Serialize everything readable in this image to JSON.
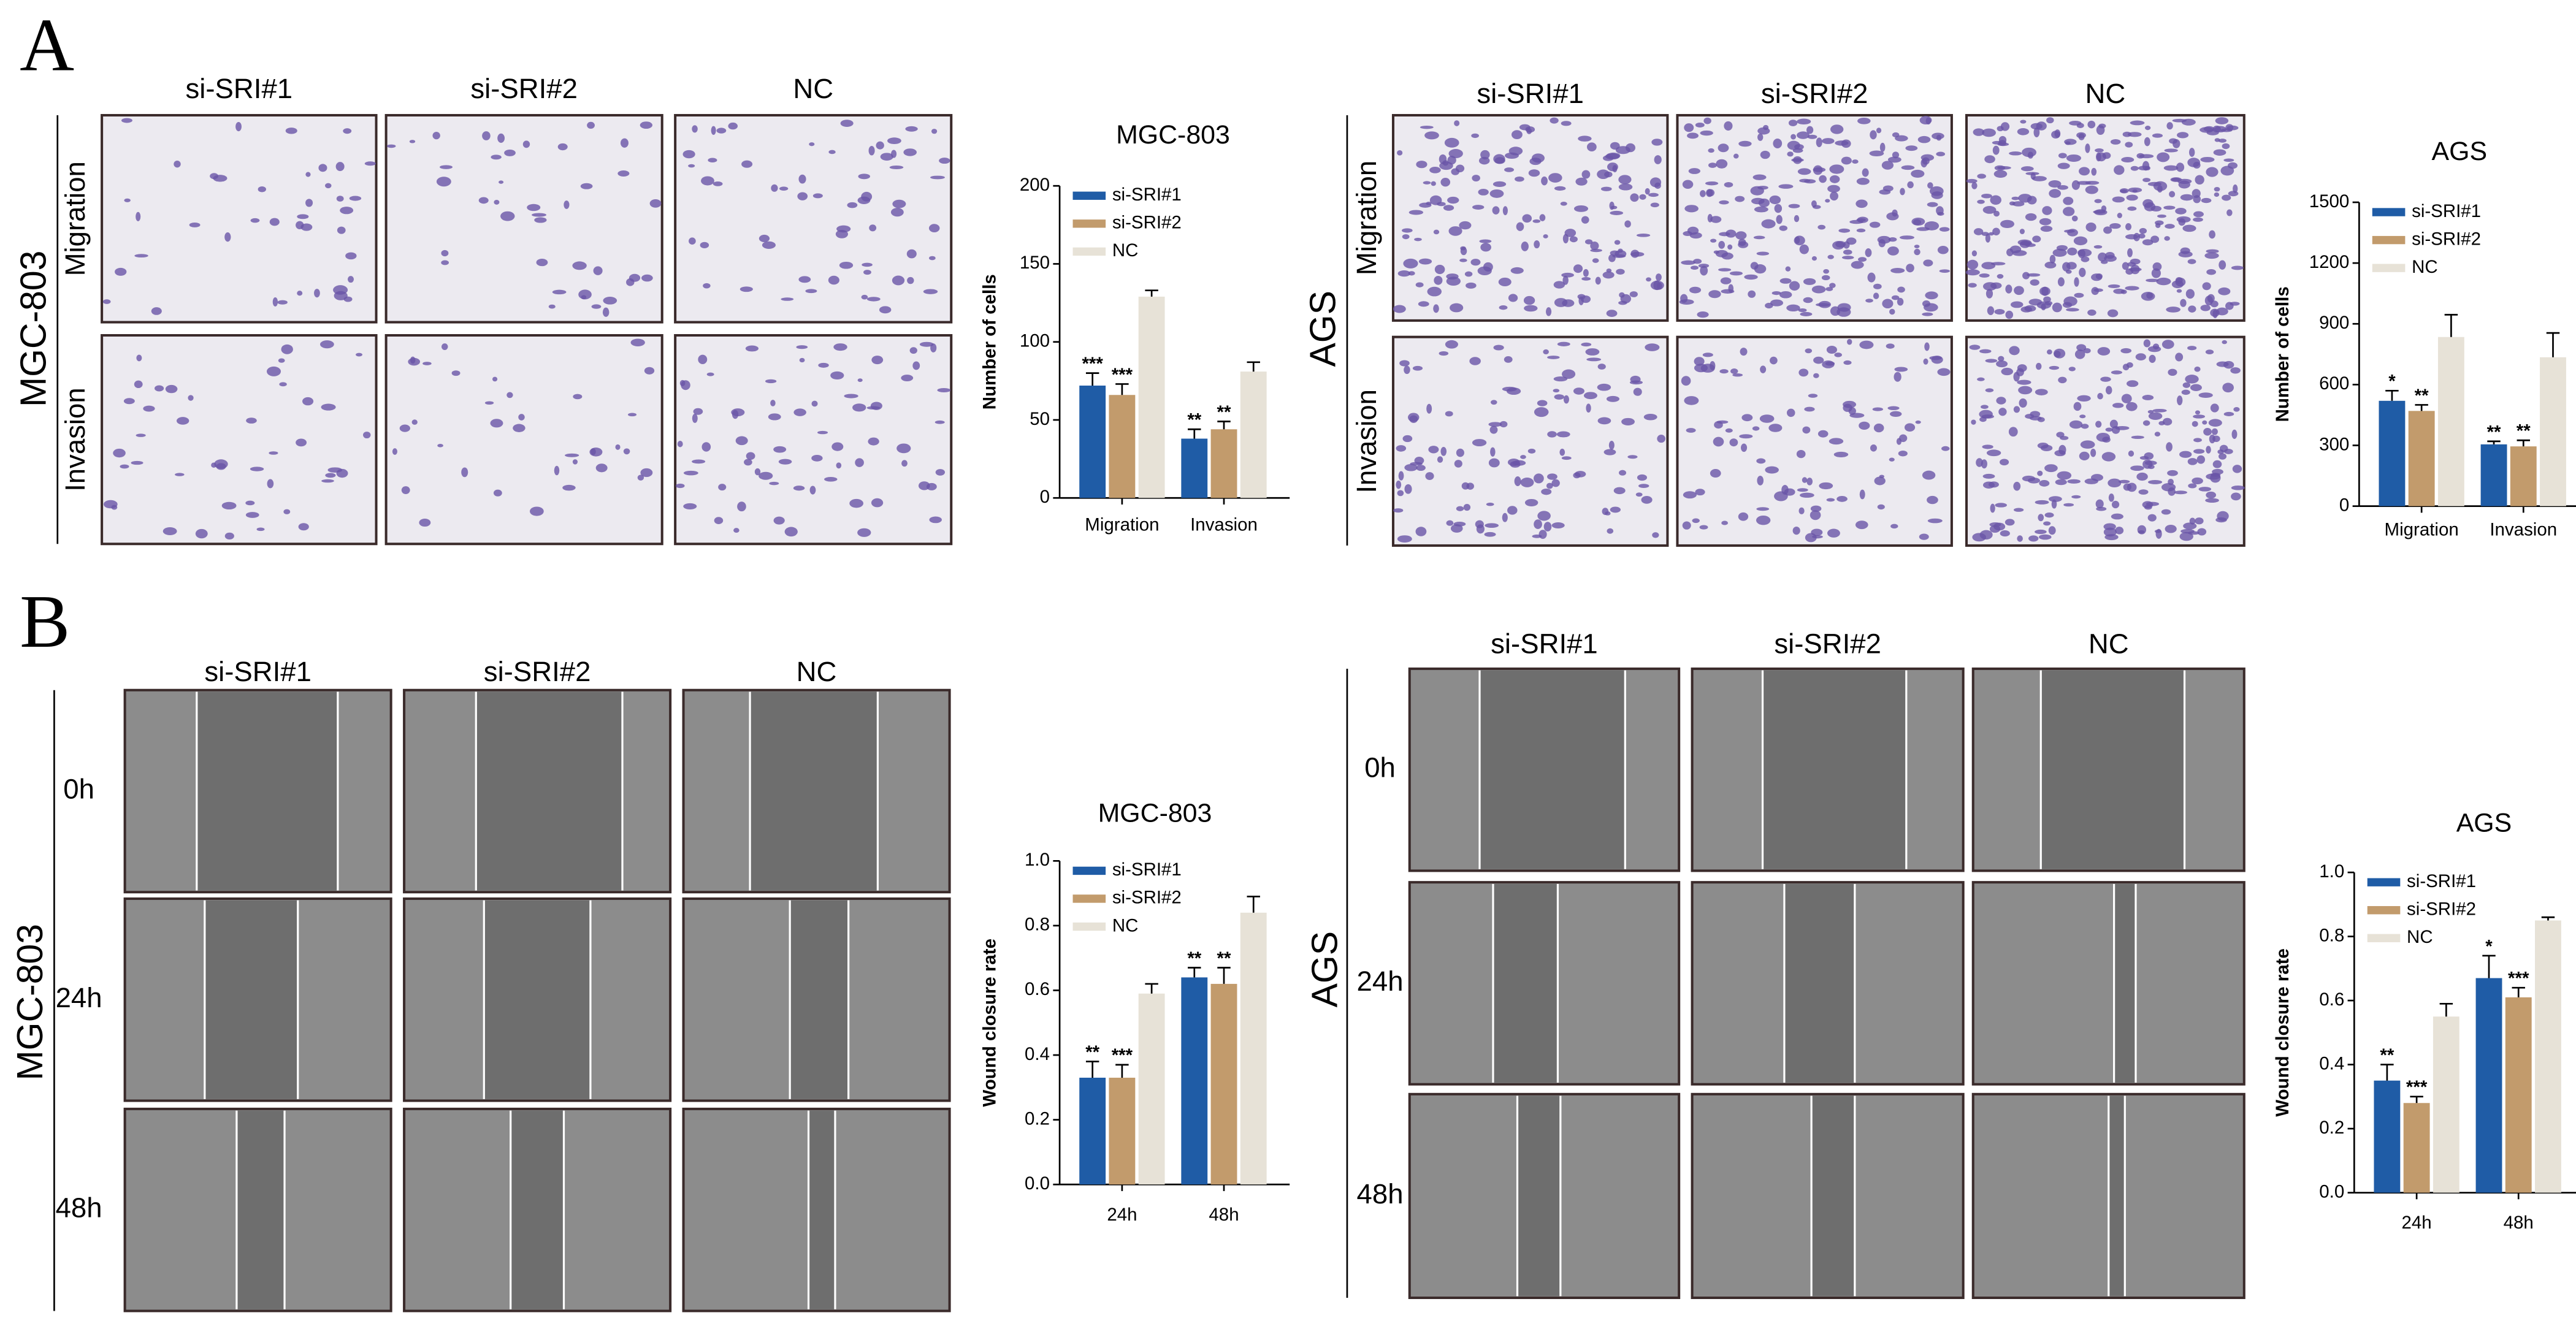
{
  "panel_labels": [
    "A",
    "B"
  ],
  "panel_a": {
    "left": {
      "group": "MGC-803",
      "columns": [
        "si-SRI#1",
        "si-SRI#2",
        "NC"
      ],
      "rows": [
        "Migration",
        "Invasion"
      ]
    },
    "right": {
      "group": "AGS",
      "columns": [
        "si-SRI#1",
        "si-SRI#2",
        "NC"
      ],
      "rows": [
        "Migration",
        "Invasion"
      ]
    }
  },
  "panel_b": {
    "left": {
      "group": "MGC-803",
      "columns": [
        "si-SRI#1",
        "si-SRI#2",
        "NC"
      ],
      "rows": [
        "0h",
        "24h",
        "48h"
      ]
    },
    "right": {
      "group": "AGS",
      "columns": [
        "si-SRI#1",
        "si-SRI#2",
        "NC"
      ],
      "rows": [
        "0h",
        "24h",
        "48h"
      ]
    }
  },
  "chart_data": [
    {
      "type": "bar",
      "title": "MGC-803",
      "ylabel": "Number of cells",
      "categories": [
        "Migration",
        "Invasion"
      ],
      "series": [
        {
          "name": "si-SRI#1",
          "color": "#1f5ca6",
          "values": [
            72,
            38
          ],
          "errors": [
            8,
            6
          ],
          "significance": [
            "***",
            "**"
          ]
        },
        {
          "name": "si-SRI#2",
          "color": "#c29b6c",
          "values": [
            66,
            44
          ],
          "errors": [
            7,
            5
          ],
          "significance": [
            "***",
            "**"
          ]
        },
        {
          "name": "NC",
          "color": "#e7e2d7",
          "values": [
            129,
            81
          ],
          "errors": [
            4,
            6
          ]
        }
      ],
      "ylim": [
        0,
        200
      ],
      "yticks": [
        0,
        50,
        100,
        150,
        200
      ],
      "legend": "upper left"
    },
    {
      "type": "bar",
      "title": "AGS",
      "ylabel": "Number of cells",
      "categories": [
        "Migration",
        "Invasion"
      ],
      "series": [
        {
          "name": "si-SRI#1",
          "color": "#1f5ca6",
          "values": [
            520,
            305
          ],
          "errors": [
            50,
            15
          ],
          "significance": [
            "*",
            "**"
          ]
        },
        {
          "name": "si-SRI#2",
          "color": "#c29b6c",
          "values": [
            470,
            295
          ],
          "errors": [
            30,
            30
          ],
          "significance": [
            "**",
            "**"
          ]
        },
        {
          "name": "NC",
          "color": "#e7e2d7",
          "values": [
            835,
            735
          ],
          "errors": [
            110,
            120
          ]
        }
      ],
      "ylim": [
        0,
        1500
      ],
      "yticks": [
        0,
        300,
        600,
        900,
        1200,
        1500
      ],
      "legend": "upper left"
    },
    {
      "type": "bar",
      "title": "MGC-803",
      "ylabel": "Wound closure rate",
      "categories": [
        "24h",
        "48h"
      ],
      "series": [
        {
          "name": "si-SRI#1",
          "color": "#1f5ca6",
          "values": [
            0.33,
            0.64
          ],
          "errors": [
            0.05,
            0.03
          ],
          "significance": [
            "**",
            "**"
          ]
        },
        {
          "name": "si-SRI#2",
          "color": "#c29b6c",
          "values": [
            0.33,
            0.62
          ],
          "errors": [
            0.04,
            0.05
          ],
          "significance": [
            "***",
            "**"
          ]
        },
        {
          "name": "NC",
          "color": "#e7e2d7",
          "values": [
            0.59,
            0.84
          ],
          "errors": [
            0.03,
            0.05
          ]
        }
      ],
      "ylim": [
        0,
        1
      ],
      "yticks": [
        {
          "value": 0,
          "label": "0.0"
        },
        0.2,
        0.4,
        0.6,
        0.8,
        {
          "value": 1,
          "label": "1.0"
        }
      ],
      "legend": "upper left"
    },
    {
      "type": "bar",
      "title": "AGS",
      "ylabel": "Wound closure rate",
      "categories": [
        "24h",
        "48h"
      ],
      "series": [
        {
          "name": "si-SRI#1",
          "color": "#1f5ca6",
          "values": [
            0.35,
            0.67
          ],
          "errors": [
            0.05,
            0.07
          ],
          "significance": [
            "**",
            "*"
          ]
        },
        {
          "name": "si-SRI#2",
          "color": "#c29b6c",
          "values": [
            0.28,
            0.61
          ],
          "errors": [
            0.02,
            0.03
          ],
          "significance": [
            "***",
            "***"
          ]
        },
        {
          "name": "NC",
          "color": "#e7e2d7",
          "values": [
            0.55,
            0.85
          ],
          "errors": [
            0.04,
            0.01
          ]
        }
      ],
      "ylim": [
        0,
        1
      ],
      "yticks": [
        {
          "value": 0,
          "label": "0.0"
        },
        0.2,
        0.4,
        0.6,
        0.8,
        {
          "value": 1,
          "label": "1.0"
        }
      ],
      "legend": "upper left"
    }
  ]
}
